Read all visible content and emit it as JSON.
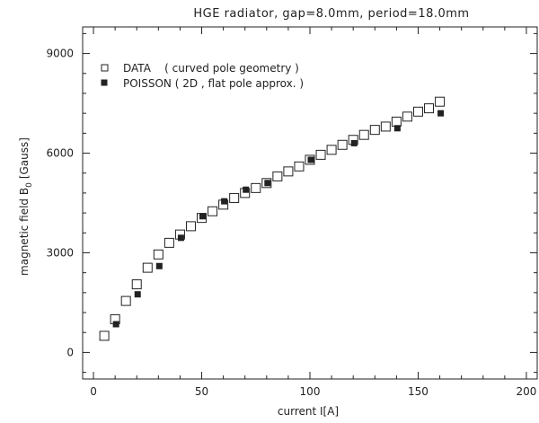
{
  "chart_data": {
    "type": "scatter",
    "title": "HGE radiator, gap=8.0mm, period=18.0mm",
    "xlabel": "current I[A]",
    "ylabel": "magnetic field B",
    "ylabel_subscript": "0",
    "ylabel_unit": "[Gauss]",
    "xlim": [
      -5,
      205
    ],
    "ylim": [
      -800,
      9800
    ],
    "xticks": [
      0,
      50,
      100,
      150,
      200
    ],
    "yticks": [
      0,
      3000,
      6000,
      9000
    ],
    "xtick_labels": [
      "0",
      "50",
      "100",
      "150",
      "200"
    ],
    "ytick_labels": [
      "0",
      "3000",
      "6000",
      "9000"
    ],
    "grid": false,
    "legend_position": "top-left",
    "series": [
      {
        "name": "DATA    ( curved pole geometry )",
        "marker": "open-square",
        "x": [
          5,
          10,
          15,
          20,
          25,
          30,
          35,
          40,
          45,
          50,
          55,
          60,
          65,
          70,
          75,
          80,
          85,
          90,
          95,
          100,
          105,
          110,
          115,
          120,
          125,
          130,
          135,
          140,
          145,
          150,
          155,
          160
        ],
        "y": [
          500,
          1000,
          1550,
          2050,
          2550,
          2950,
          3300,
          3550,
          3800,
          4050,
          4250,
          4450,
          4650,
          4800,
          4950,
          5100,
          5300,
          5450,
          5600,
          5800,
          5950,
          6100,
          6250,
          6400,
          6550,
          6700,
          6800,
          6950,
          7100,
          7250,
          7350,
          7550
        ]
      },
      {
        "name": "POISSON ( 2D , flat pole approx. )",
        "marker": "filled-square",
        "x": [
          10,
          20,
          30,
          40,
          50,
          60,
          70,
          80,
          100,
          120,
          140,
          160
        ],
        "y": [
          850,
          1750,
          2600,
          3450,
          4100,
          4550,
          4900,
          5100,
          5800,
          6300,
          6750,
          7200
        ]
      }
    ]
  },
  "colors": {
    "axis": "#222222",
    "marker": "#222222",
    "background": "#ffffff"
  }
}
